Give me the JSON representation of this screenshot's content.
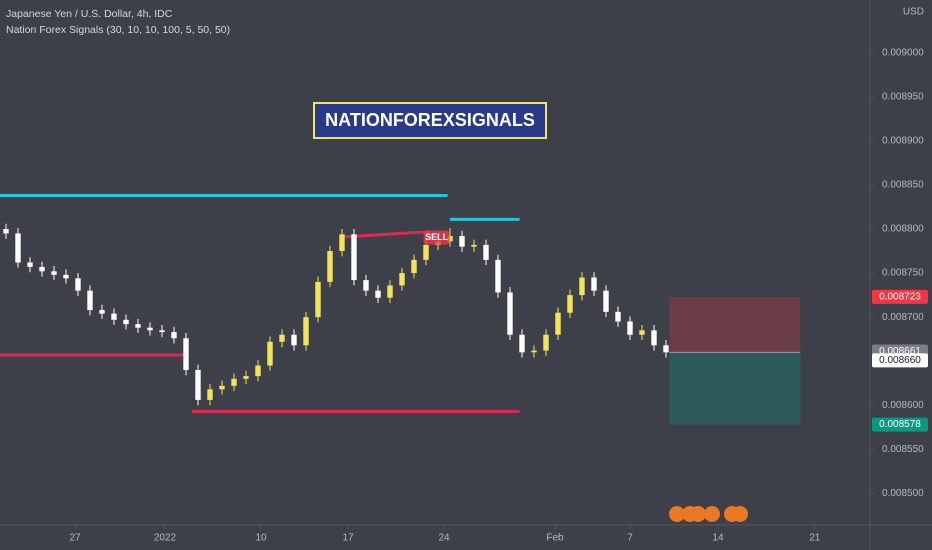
{
  "chart_data": {
    "type": "candlestick",
    "title": "Japanese Yen / U.S. Dollar, 4h, IDC",
    "subtitle": "Nation Forex Signals  (30, 10, 10, 100, 5, 50, 50)",
    "currency": "USD",
    "watermark": "NATIONFOREXSIGNALS",
    "signal": "SELL",
    "up_color": "#f2e45c",
    "down_color": "#ffffff",
    "open": [
      0.0088,
      0.008795,
      0.008762,
      0.008757,
      0.008752,
      0.008748,
      0.008744,
      0.00873,
      0.008708,
      0.008704,
      0.008697,
      0.008692,
      0.008688,
      0.008685,
      0.008683,
      0.008676,
      0.00864,
      0.008606,
      0.008618,
      0.008622,
      0.00863,
      0.008633,
      0.008645,
      0.008672,
      0.00868,
      0.008668,
      0.0087,
      0.00874,
      0.008775,
      0.008794,
      0.008742,
      0.00873,
      0.008722,
      0.008736,
      0.00875,
      0.008765,
      0.008782,
      0.008786,
      0.008792,
      0.00878,
      0.008782,
      0.008765,
      0.008728,
      0.00868,
      0.00866,
      0.008662,
      0.00868,
      0.008705,
      0.008725,
      0.008745,
      0.00873,
      0.008706,
      0.008695,
      0.00868,
      0.008685,
      0.008668
    ],
    "high": [
      0.008806,
      0.008801,
      0.008768,
      0.008763,
      0.008758,
      0.008754,
      0.00875,
      0.008736,
      0.008714,
      0.00871,
      0.008703,
      0.008698,
      0.008694,
      0.008691,
      0.008689,
      0.008682,
      0.008646,
      0.008624,
      0.008628,
      0.008636,
      0.008639,
      0.008651,
      0.008678,
      0.008686,
      0.008686,
      0.008706,
      0.008746,
      0.008781,
      0.0088,
      0.0088,
      0.008748,
      0.008736,
      0.008742,
      0.008756,
      0.008771,
      0.008788,
      0.008792,
      0.008801,
      0.008798,
      0.008788,
      0.008788,
      0.008771,
      0.008734,
      0.008686,
      0.008668,
      0.008686,
      0.008711,
      0.008731,
      0.008751,
      0.008751,
      0.008736,
      0.008712,
      0.008701,
      0.008691,
      0.008691,
      0.008674
    ],
    "low": [
      0.008789,
      0.008756,
      0.008751,
      0.008746,
      0.008742,
      0.008738,
      0.008724,
      0.008702,
      0.008698,
      0.008691,
      0.008686,
      0.008682,
      0.008679,
      0.008677,
      0.00867,
      0.008634,
      0.0086,
      0.0086,
      0.008612,
      0.008616,
      0.008624,
      0.008627,
      0.008639,
      0.008666,
      0.008662,
      0.008662,
      0.008694,
      0.008734,
      0.008769,
      0.008736,
      0.008724,
      0.008716,
      0.008716,
      0.00873,
      0.008744,
      0.008759,
      0.008776,
      0.00878,
      0.008774,
      0.008774,
      0.008759,
      0.008722,
      0.008674,
      0.008654,
      0.008654,
      0.008656,
      0.008674,
      0.008699,
      0.008719,
      0.008724,
      0.0087,
      0.008689,
      0.008674,
      0.008674,
      0.008662,
      0.008654
    ],
    "close": [
      0.008795,
      0.008762,
      0.008757,
      0.008752,
      0.008748,
      0.008744,
      0.00873,
      0.008708,
      0.008704,
      0.008697,
      0.008692,
      0.008688,
      0.008685,
      0.008683,
      0.008676,
      0.00864,
      0.008606,
      0.008618,
      0.008622,
      0.00863,
      0.008633,
      0.008645,
      0.008672,
      0.00868,
      0.008668,
      0.0087,
      0.00874,
      0.008775,
      0.008794,
      0.008742,
      0.00873,
      0.008722,
      0.008736,
      0.00875,
      0.008765,
      0.008782,
      0.008786,
      0.008792,
      0.00878,
      0.008782,
      0.008765,
      0.008728,
      0.00868,
      0.00866,
      0.008662,
      0.00868,
      0.008705,
      0.008725,
      0.008745,
      0.00873,
      0.008706,
      0.008695,
      0.00868,
      0.008685,
      0.008668,
      0.00866
    ],
    "xlim": [
      -0.5,
      72
    ],
    "ylim": [
      0.008464,
      0.00906
    ],
    "xticks": [
      {
        "value": 5.75,
        "label": "27"
      },
      {
        "value": 13.25,
        "label": "2022"
      },
      {
        "value": 21.25,
        "label": "10"
      },
      {
        "value": 28.5,
        "label": "17"
      },
      {
        "value": 36.5,
        "label": "24"
      },
      {
        "value": 45.75,
        "label": "Feb"
      },
      {
        "value": 52,
        "label": "7"
      },
      {
        "value": 59.33,
        "label": "14"
      },
      {
        "value": 67.4,
        "label": "21"
      }
    ],
    "yticks": [
      {
        "value": 0.0085,
        "label": "0.008500"
      },
      {
        "value": 0.00855,
        "label": "0.008550"
      },
      {
        "value": 0.0086,
        "label": "0.008600"
      },
      {
        "value": 0.0087,
        "label": "0.008700"
      },
      {
        "value": 0.00875,
        "label": "0.008750"
      },
      {
        "value": 0.0088,
        "label": "0.008800"
      },
      {
        "value": 0.00885,
        "label": "0.008850"
      },
      {
        "value": 0.0089,
        "label": "0.008900"
      },
      {
        "value": 0.00895,
        "label": "0.008950"
      },
      {
        "value": 0.009,
        "label": "0.009000"
      }
    ],
    "grid": false,
    "drawings": [
      {
        "color": "#26c6da",
        "x": [
          -0.5,
          36.8
        ],
        "y": [
          0.008838,
          0.008838
        ]
      },
      {
        "color": "#26c6da",
        "x": [
          37,
          42.8
        ],
        "y": [
          0.008811,
          0.008811
        ]
      },
      {
        "color": "#e0284f",
        "x": [
          -0.5,
          14.9
        ],
        "y": [
          0.008657,
          0.008657
        ]
      },
      {
        "color": "#e0284f",
        "x": [
          15.5,
          42.8
        ],
        "y": [
          0.008593,
          0.008593
        ]
      },
      {
        "color": "#e0284f",
        "x": [
          28.1,
          35.3
        ],
        "y": [
          0.008791,
          0.008797
        ]
      }
    ],
    "position": {
      "x": [
        55.3,
        66.2
      ],
      "stop": 0.008723,
      "entry": {
        "value": 0.00866,
        "label": "0.008660"
      },
      "target": 0.008578
    },
    "last_price": 0.008661
  }
}
